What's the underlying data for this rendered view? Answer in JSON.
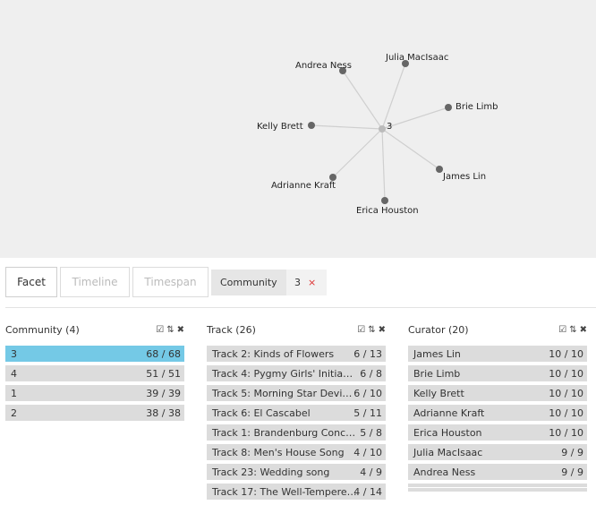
{
  "graph": {
    "center": "3",
    "nodes": [
      "Andrea Ness",
      "Julia MacIsaac",
      "Brie Limb",
      "Kelly Brett",
      "James Lin",
      "Adrianne Kraft",
      "Erica Houston"
    ]
  },
  "tabs": {
    "facet": "Facet",
    "timeline": "Timeline",
    "timespan": "Timespan",
    "active": "Facet"
  },
  "filter": {
    "name": "Community",
    "value": "3",
    "close": "×"
  },
  "facets": {
    "community": {
      "title": "Community (4)",
      "rows": [
        {
          "label": "3",
          "count": "68 / 68",
          "selected": true
        },
        {
          "label": "4",
          "count": "51 / 51"
        },
        {
          "label": "1",
          "count": "39 / 39"
        },
        {
          "label": "2",
          "count": "38 / 38"
        }
      ]
    },
    "track": {
      "title": "Track (26)",
      "rows": [
        {
          "label": "Track 2: Kinds of Flowers",
          "count": "6 / 13"
        },
        {
          "label": "Track 4: Pygmy Girls' Initia…",
          "count": "6 / 8"
        },
        {
          "label": "Track 5: Morning Star Devi…",
          "count": "6 / 10"
        },
        {
          "label": "Track 6: El Cascabel",
          "count": "5 / 11"
        },
        {
          "label": "Track 1: Brandenburg Conc…",
          "count": "5 / 8"
        },
        {
          "label": "Track 8: Men's House Song",
          "count": "4 / 10"
        },
        {
          "label": "Track 23: Wedding song",
          "count": "4 / 9"
        },
        {
          "label": "Track 17: The Well-Tempere…",
          "count": "4 / 14"
        }
      ]
    },
    "curator": {
      "title": "Curator (20)",
      "rows": [
        {
          "label": "James Lin",
          "count": "10 / 10"
        },
        {
          "label": "Brie Limb",
          "count": "10 / 10"
        },
        {
          "label": "Kelly Brett",
          "count": "10 / 10"
        },
        {
          "label": "Adrianne Kraft",
          "count": "10 / 10"
        },
        {
          "label": "Erica Houston",
          "count": "10 / 10"
        },
        {
          "label": "Julia MacIsaac",
          "count": "9 / 9"
        },
        {
          "label": "Andrea Ness",
          "count": "9 / 9"
        }
      ]
    }
  },
  "icons": {
    "select_all": "check-square-icon",
    "sort": "sort-alpha-icon",
    "clear": "close-icon"
  },
  "colors": {
    "selected_row": "#74c9e6",
    "row": "#dcdcdc",
    "graph_bg": "#efefef",
    "node": "#666666",
    "center_node": "#bbbbbb",
    "close": "#dd3333"
  }
}
